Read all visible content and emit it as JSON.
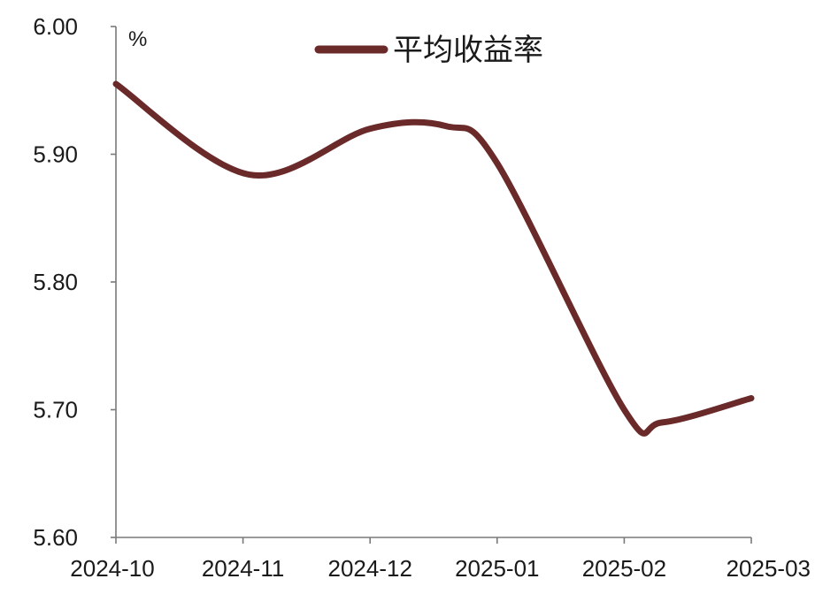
{
  "chart_data": {
    "type": "line",
    "title": "",
    "xlabel": "",
    "ylabel": "",
    "unit": "%",
    "categories": [
      "2024-10",
      "2024-11",
      "2024-12",
      "2025-01",
      "2025-02",
      "2025-03"
    ],
    "yticks": [
      "6.00",
      "5.90",
      "5.80",
      "5.70",
      "5.60"
    ],
    "ylim": [
      5.6,
      6.0
    ],
    "grid": false,
    "legend_position": "top-center",
    "series": [
      {
        "name": "平均收益率",
        "color": "#6b2a2a",
        "points": [
          [
            0.0,
            5.955
          ],
          [
            1.05,
            5.884
          ],
          [
            2.0,
            5.92
          ],
          [
            2.6,
            5.922
          ],
          [
            3.0,
            5.893
          ],
          [
            4.0,
            5.7
          ],
          [
            4.3,
            5.69
          ],
          [
            5.0,
            5.709
          ]
        ]
      }
    ]
  }
}
